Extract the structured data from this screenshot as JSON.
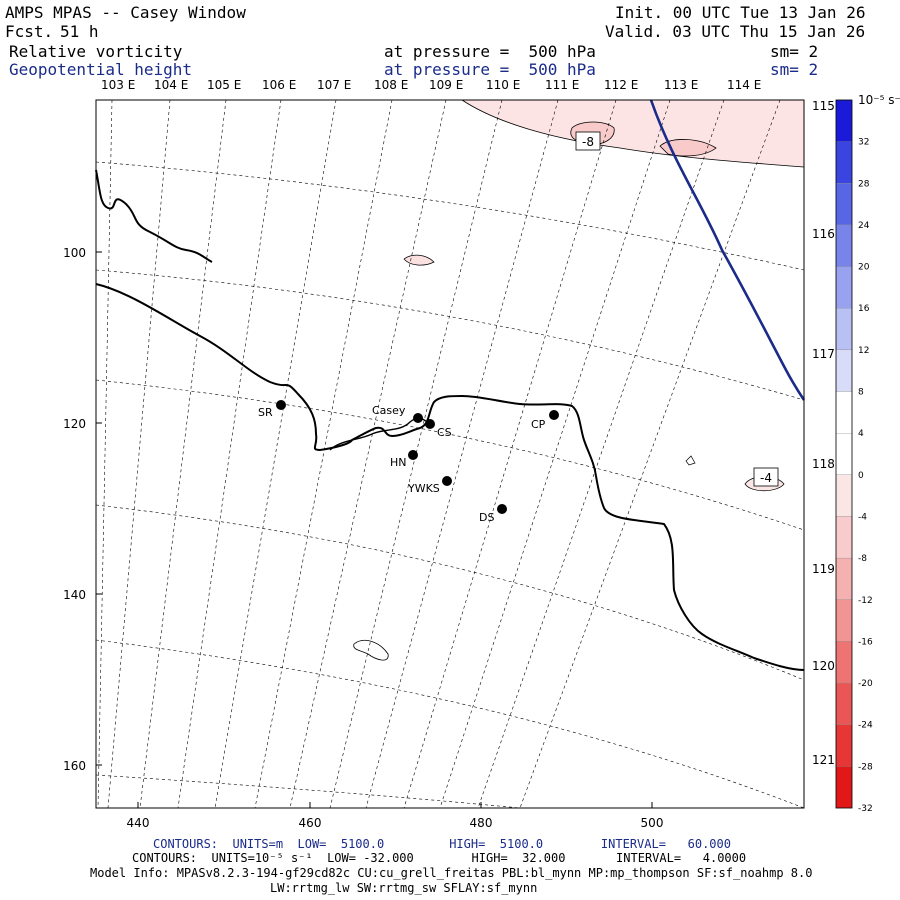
{
  "header": {
    "title": "AMPS MPAS -- Casey Window",
    "fcst_label": "Fcst.",
    "fcst_value": "51 h",
    "init": "Init. 00 UTC Tue 13 Jan 26",
    "valid": "Valid. 03 UTC Thu 15 Jan 26"
  },
  "fields": [
    {
      "name": "Relative vorticity",
      "level": "at pressure =  500 hPa",
      "sm": "sm= 2",
      "color": "#000000"
    },
    {
      "name": "Geopotential height",
      "level": "at pressure =  500 hPa",
      "sm": "sm= 2",
      "color": "#1a2b8a"
    }
  ],
  "map": {
    "top_lon_labels": [
      "103 E",
      "104 E",
      "105 E",
      "106 E",
      "107 E",
      "108 E",
      "109 E",
      "110 E",
      "111 E",
      "112 E",
      "113 E",
      "114 E"
    ],
    "right_lon_labels": [
      "115 E",
      "116 E",
      "117 E",
      "118 E",
      "119 E",
      "120 E",
      "121 E"
    ],
    "x_ticks": [
      "440",
      "460",
      "480",
      "500"
    ],
    "y_ticks": [
      "100",
      "120",
      "140",
      "160"
    ],
    "contour_labels": [
      "-8",
      "-4"
    ],
    "stations": [
      {
        "name": "Casey"
      },
      {
        "name": "CS"
      },
      {
        "name": "SR"
      },
      {
        "name": "CP"
      },
      {
        "name": "HN"
      },
      {
        "name": "YWKS"
      },
      {
        "name": "DS"
      }
    ]
  },
  "colorbar": {
    "unit": "10⁻⁵ s⁻¹",
    "levels": [
      "32",
      "28",
      "24",
      "20",
      "16",
      "12",
      "8",
      "4",
      "0",
      "-4",
      "-8",
      "-12",
      "-16",
      "-20",
      "-24",
      "-28",
      "-32"
    ],
    "colors": [
      "#1a1ad8",
      "#3a44e0",
      "#5866e6",
      "#7884ea",
      "#98a2ee",
      "#b8c0f4",
      "#d8dcf8",
      "#ffffff",
      "#ffffff",
      "#fbe6e6",
      "#f8cccc",
      "#f5b0b0",
      "#f29494",
      "#ee7474",
      "#ea5656",
      "#e63636",
      "#e21818"
    ]
  },
  "footer": {
    "line1": "CONTOURS:  UNITS=m  LOW=  5100.0         HIGH=  5100.0        INTERVAL=   60.000",
    "line2": "CONTOURS:  UNITS=10⁻⁵ s⁻¹  LOW= -32.000        HIGH=  32.000       INTERVAL=   4.0000",
    "line3": "Model Info: MPASv8.2.3-194-gf29cd82c CU:cu_grell_freitas PBL:bl_mynn MP:mp_thompson SF:sf_noahmp 8.0",
    "line4": "LW:rrtmg_lw SW:rrtmg_sw SFLAY:sf_mynn"
  }
}
